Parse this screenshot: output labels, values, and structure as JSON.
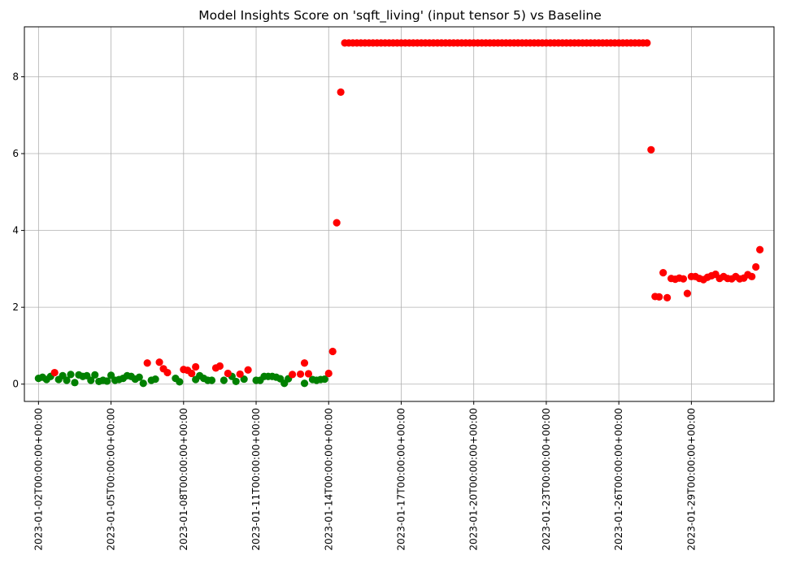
{
  "chart_data": {
    "type": "scatter",
    "title": "Model Insights Score on 'sqft_living' (input tensor 5) vs Baseline",
    "xlabel": "",
    "ylabel": "",
    "x_tick_labels": [
      "2023-01-02T00:00:00+00:00",
      "2023-01-05T00:00:00+00:00",
      "2023-01-08T00:00:00+00:00",
      "2023-01-11T00:00:00+00:00",
      "2023-01-14T00:00:00+00:00",
      "2023-01-17T00:00:00+00:00",
      "2023-01-20T00:00:00+00:00",
      "2023-01-23T00:00:00+00:00",
      "2023-01-26T00:00:00+00:00",
      "2023-01-29T00:00:00+00:00"
    ],
    "x_tick_values": [
      "2023-01-02",
      "2023-01-05",
      "2023-01-08",
      "2023-01-11",
      "2023-01-14",
      "2023-01-17",
      "2023-01-20",
      "2023-01-23",
      "2023-01-26",
      "2023-01-29"
    ],
    "y_ticks": [
      0,
      2,
      4,
      6,
      8
    ],
    "xlim": [
      "2023-01-01T10:00",
      "2023-02-01T10:00"
    ],
    "ylim": [
      -0.45,
      9.3
    ],
    "grid": true,
    "colors": {
      "ok": "#008000",
      "alert": "#ff0000"
    },
    "series": [
      {
        "color": "ok",
        "points": [
          [
            "2023-01-02T00:00",
            0.15
          ],
          [
            "2023-01-02T04:00",
            0.18
          ],
          [
            "2023-01-02T08:00",
            0.12
          ],
          [
            "2023-01-02T12:00",
            0.2
          ],
          [
            "2023-01-02T20:00",
            0.12
          ],
          [
            "2023-01-03T00:00",
            0.22
          ],
          [
            "2023-01-03T04:00",
            0.1
          ],
          [
            "2023-01-03T08:00",
            0.25
          ],
          [
            "2023-01-03T12:00",
            0.04
          ],
          [
            "2023-01-03T16:00",
            0.24
          ],
          [
            "2023-01-03T20:00",
            0.2
          ],
          [
            "2023-01-04T00:00",
            0.22
          ],
          [
            "2023-01-04T04:00",
            0.1
          ],
          [
            "2023-01-04T08:00",
            0.24
          ],
          [
            "2023-01-04T12:00",
            0.07
          ],
          [
            "2023-01-04T16:00",
            0.1
          ],
          [
            "2023-01-04T20:00",
            0.08
          ],
          [
            "2023-01-05T00:00",
            0.23
          ],
          [
            "2023-01-05T04:00",
            0.1
          ],
          [
            "2023-01-05T08:00",
            0.12
          ],
          [
            "2023-01-05T12:00",
            0.15
          ],
          [
            "2023-01-05T16:00",
            0.22
          ],
          [
            "2023-01-05T20:00",
            0.2
          ],
          [
            "2023-01-06T00:00",
            0.13
          ],
          [
            "2023-01-06T04:00",
            0.18
          ],
          [
            "2023-01-06T08:00",
            0.02
          ],
          [
            "2023-01-06T16:00",
            0.1
          ],
          [
            "2023-01-06T20:00",
            0.13
          ],
          [
            "2023-01-07T16:00",
            0.15
          ],
          [
            "2023-01-07T20:00",
            0.06
          ],
          [
            "2023-01-08T12:00",
            0.12
          ],
          [
            "2023-01-08T16:00",
            0.22
          ],
          [
            "2023-01-08T20:00",
            0.15
          ],
          [
            "2023-01-09T00:00",
            0.1
          ],
          [
            "2023-01-09T04:00",
            0.1
          ],
          [
            "2023-01-09T16:00",
            0.1
          ],
          [
            "2023-01-10T00:00",
            0.2
          ],
          [
            "2023-01-10T04:00",
            0.07
          ],
          [
            "2023-01-10T12:00",
            0.13
          ],
          [
            "2023-01-11T00:00",
            0.1
          ],
          [
            "2023-01-11T04:00",
            0.1
          ],
          [
            "2023-01-11T08:00",
            0.2
          ],
          [
            "2023-01-11T12:00",
            0.2
          ],
          [
            "2023-01-11T16:00",
            0.2
          ],
          [
            "2023-01-11T20:00",
            0.18
          ],
          [
            "2023-01-12T00:00",
            0.14
          ],
          [
            "2023-01-12T04:00",
            0.02
          ],
          [
            "2023-01-12T08:00",
            0.14
          ],
          [
            "2023-01-13T00:00",
            0.02
          ],
          [
            "2023-01-13T08:00",
            0.12
          ],
          [
            "2023-01-13T12:00",
            0.1
          ],
          [
            "2023-01-13T16:00",
            0.12
          ],
          [
            "2023-01-13T20:00",
            0.13
          ]
        ]
      },
      {
        "color": "alert",
        "points": [
          [
            "2023-01-02T16:00",
            0.3
          ],
          [
            "2023-01-06T12:00",
            0.55
          ],
          [
            "2023-01-07T00:00",
            0.57
          ],
          [
            "2023-01-07T04:00",
            0.4
          ],
          [
            "2023-01-07T08:00",
            0.3
          ],
          [
            "2023-01-08T00:00",
            0.38
          ],
          [
            "2023-01-08T04:00",
            0.36
          ],
          [
            "2023-01-08T08:00",
            0.28
          ],
          [
            "2023-01-08T12:00",
            0.45
          ],
          [
            "2023-01-09T08:00",
            0.42
          ],
          [
            "2023-01-09T12:00",
            0.47
          ],
          [
            "2023-01-09T20:00",
            0.28
          ],
          [
            "2023-01-10T08:00",
            0.26
          ],
          [
            "2023-01-10T16:00",
            0.37
          ],
          [
            "2023-01-12T12:00",
            0.25
          ],
          [
            "2023-01-12T20:00",
            0.26
          ],
          [
            "2023-01-13T00:00",
            0.55
          ],
          [
            "2023-01-13T04:00",
            0.27
          ],
          [
            "2023-01-14T00:00",
            0.28
          ],
          [
            "2023-01-14T04:00",
            0.85
          ],
          [
            "2023-01-14T08:00",
            4.2
          ],
          [
            "2023-01-14T12:00",
            7.6
          ],
          [
            "2023-01-14T16:00",
            8.88
          ],
          [
            "2023-01-14T20:00",
            8.88
          ],
          [
            "2023-01-15T00:00",
            8.88
          ],
          [
            "2023-01-15T04:00",
            8.88
          ],
          [
            "2023-01-15T08:00",
            8.88
          ],
          [
            "2023-01-15T12:00",
            8.88
          ],
          [
            "2023-01-15T16:00",
            8.88
          ],
          [
            "2023-01-15T20:00",
            8.88
          ],
          [
            "2023-01-16T00:00",
            8.88
          ],
          [
            "2023-01-16T04:00",
            8.88
          ],
          [
            "2023-01-16T08:00",
            8.88
          ],
          [
            "2023-01-16T12:00",
            8.88
          ],
          [
            "2023-01-16T16:00",
            8.88
          ],
          [
            "2023-01-16T20:00",
            8.88
          ],
          [
            "2023-01-17T00:00",
            8.88
          ],
          [
            "2023-01-17T04:00",
            8.88
          ],
          [
            "2023-01-17T08:00",
            8.88
          ],
          [
            "2023-01-17T12:00",
            8.88
          ],
          [
            "2023-01-17T16:00",
            8.88
          ],
          [
            "2023-01-17T20:00",
            8.88
          ],
          [
            "2023-01-18T00:00",
            8.88
          ],
          [
            "2023-01-18T04:00",
            8.88
          ],
          [
            "2023-01-18T08:00",
            8.88
          ],
          [
            "2023-01-18T12:00",
            8.88
          ],
          [
            "2023-01-18T16:00",
            8.88
          ],
          [
            "2023-01-18T20:00",
            8.88
          ],
          [
            "2023-01-19T00:00",
            8.88
          ],
          [
            "2023-01-19T04:00",
            8.88
          ],
          [
            "2023-01-19T08:00",
            8.88
          ],
          [
            "2023-01-19T12:00",
            8.88
          ],
          [
            "2023-01-19T16:00",
            8.88
          ],
          [
            "2023-01-19T20:00",
            8.88
          ],
          [
            "2023-01-20T00:00",
            8.88
          ],
          [
            "2023-01-20T04:00",
            8.88
          ],
          [
            "2023-01-20T08:00",
            8.88
          ],
          [
            "2023-01-20T12:00",
            8.88
          ],
          [
            "2023-01-20T16:00",
            8.88
          ],
          [
            "2023-01-20T20:00",
            8.88
          ],
          [
            "2023-01-21T00:00",
            8.88
          ],
          [
            "2023-01-21T04:00",
            8.88
          ],
          [
            "2023-01-21T08:00",
            8.88
          ],
          [
            "2023-01-21T12:00",
            8.88
          ],
          [
            "2023-01-21T16:00",
            8.88
          ],
          [
            "2023-01-21T20:00",
            8.88
          ],
          [
            "2023-01-22T00:00",
            8.88
          ],
          [
            "2023-01-22T04:00",
            8.88
          ],
          [
            "2023-01-22T08:00",
            8.88
          ],
          [
            "2023-01-22T12:00",
            8.88
          ],
          [
            "2023-01-22T16:00",
            8.88
          ],
          [
            "2023-01-22T20:00",
            8.88
          ],
          [
            "2023-01-23T00:00",
            8.88
          ],
          [
            "2023-01-23T04:00",
            8.88
          ],
          [
            "2023-01-23T08:00",
            8.88
          ],
          [
            "2023-01-23T12:00",
            8.88
          ],
          [
            "2023-01-23T16:00",
            8.88
          ],
          [
            "2023-01-23T20:00",
            8.88
          ],
          [
            "2023-01-24T00:00",
            8.88
          ],
          [
            "2023-01-24T04:00",
            8.88
          ],
          [
            "2023-01-24T08:00",
            8.88
          ],
          [
            "2023-01-24T12:00",
            8.88
          ],
          [
            "2023-01-24T16:00",
            8.88
          ],
          [
            "2023-01-24T20:00",
            8.88
          ],
          [
            "2023-01-25T00:00",
            8.88
          ],
          [
            "2023-01-25T04:00",
            8.88
          ],
          [
            "2023-01-25T08:00",
            8.88
          ],
          [
            "2023-01-25T12:00",
            8.88
          ],
          [
            "2023-01-25T16:00",
            8.88
          ],
          [
            "2023-01-25T20:00",
            8.88
          ],
          [
            "2023-01-26T00:00",
            8.88
          ],
          [
            "2023-01-26T04:00",
            8.88
          ],
          [
            "2023-01-26T08:00",
            8.88
          ],
          [
            "2023-01-26T12:00",
            8.88
          ],
          [
            "2023-01-26T16:00",
            8.88
          ],
          [
            "2023-01-26T20:00",
            8.88
          ],
          [
            "2023-01-27T00:00",
            8.88
          ],
          [
            "2023-01-27T04:00",
            8.88
          ],
          [
            "2023-01-27T08:00",
            6.1
          ],
          [
            "2023-01-27T12:00",
            2.28
          ],
          [
            "2023-01-27T16:00",
            2.27
          ],
          [
            "2023-01-27T20:00",
            2.9
          ],
          [
            "2023-01-28T00:00",
            2.25
          ],
          [
            "2023-01-28T04:00",
            2.75
          ],
          [
            "2023-01-28T08:00",
            2.73
          ],
          [
            "2023-01-28T12:00",
            2.76
          ],
          [
            "2023-01-28T16:00",
            2.74
          ],
          [
            "2023-01-28T20:00",
            2.36
          ],
          [
            "2023-01-29T00:00",
            2.8
          ],
          [
            "2023-01-29T04:00",
            2.8
          ],
          [
            "2023-01-29T08:00",
            2.75
          ],
          [
            "2023-01-29T12:00",
            2.72
          ],
          [
            "2023-01-29T16:00",
            2.78
          ],
          [
            "2023-01-29T20:00",
            2.82
          ],
          [
            "2023-01-30T00:00",
            2.86
          ],
          [
            "2023-01-30T04:00",
            2.75
          ],
          [
            "2023-01-30T08:00",
            2.8
          ],
          [
            "2023-01-30T12:00",
            2.75
          ],
          [
            "2023-01-30T16:00",
            2.74
          ],
          [
            "2023-01-30T20:00",
            2.8
          ],
          [
            "2023-01-31T00:00",
            2.74
          ],
          [
            "2023-01-31T04:00",
            2.76
          ],
          [
            "2023-01-31T08:00",
            2.85
          ],
          [
            "2023-01-31T12:00",
            2.8
          ],
          [
            "2023-01-31T16:00",
            3.05
          ],
          [
            "2023-01-31T20:00",
            3.5
          ]
        ]
      }
    ]
  }
}
